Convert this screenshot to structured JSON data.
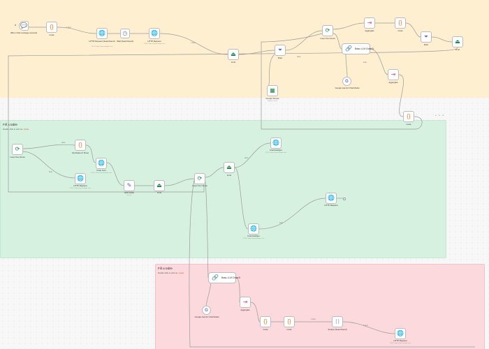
{
  "sticky_notes": {
    "green": {
      "title": "Fill a table",
      "subtitle": "Double click to edit me.",
      "guide": "Guide"
    },
    "red": {
      "title": "Fill a table",
      "subtitle": "Double click to edit me.",
      "guide": "Guide"
    }
  },
  "nodes": {
    "chat_trigger": {
      "label": "When chat message received",
      "icon": "chat-bubble-icon"
    },
    "code1": {
      "label": "Code",
      "icon": "code-braces-icon"
    },
    "http1": {
      "label": "HTTP Request (Searchsend)",
      "sub": "POST: https://api.example.com",
      "icon": "globe-icon"
    },
    "wait": {
      "label": "Wait (Searchsend)",
      "icon": "clock-icon"
    },
    "http2": {
      "label": "HTTP Request",
      "sub": "POST: https://api.example.com",
      "icon": "globe-icon"
    },
    "limit1": {
      "label": "Limit",
      "icon": "limit-icon"
    },
    "filter1": {
      "label": "Filter",
      "icon": "funnel-icon"
    },
    "loop1": {
      "label": "Loop Over Items",
      "icon": "loop-icon"
    },
    "aggregate1": {
      "label": "Aggregate",
      "icon": "aggregate-icon"
    },
    "code2": {
      "label": "Code",
      "icon": "code-braces-icon"
    },
    "filter2": {
      "label": "Filter",
      "icon": "funnel-icon"
    },
    "limit2": {
      "label": "Limit",
      "icon": "limit-icon"
    },
    "basic_llm1": {
      "label": "Basic LLM Chain",
      "icon": "link-icon",
      "badge": "⚙"
    },
    "gemini1": {
      "label": "Google Gemini Chat Model",
      "icon": "gemini-icon"
    },
    "aggregate2": {
      "label": "Aggregate",
      "icon": "aggregate-icon"
    },
    "sheets1": {
      "label": "Google Sheets",
      "sub": "append: sheet",
      "icon": "sheets-icon"
    },
    "code3": {
      "label": "Code",
      "icon": "code-braces-icon"
    },
    "loop2": {
      "label": "Loop Over Items",
      "icon": "loop-icon"
    },
    "code4": {
      "label": "Set Dates & Times",
      "icon": "code-braces-icon"
    },
    "http3": {
      "label": "Code Json",
      "sub": "POST: https://api.example.com",
      "icon": "globe-icon"
    },
    "http4": {
      "label": "HTTP Request",
      "sub": "POST: https://api.example.com",
      "icon": "globe-icon"
    },
    "edit1": {
      "label": "Edit Fields",
      "sub": "manual",
      "icon": "pencil-icon"
    },
    "limit3": {
      "label": "Limit",
      "icon": "limit-icon"
    },
    "loop3": {
      "label": "Loop Over Items",
      "icon": "loop-icon"
    },
    "limit4": {
      "label": "Limit",
      "icon": "limit-icon"
    },
    "firecrawl1": {
      "label": "FireCrawl/get",
      "sub": "POST: https://api.example.com",
      "icon": "globe-icon"
    },
    "http5": {
      "label": "HTTP Request",
      "sub": "POST: https://api.example.com",
      "icon": "globe-icon"
    },
    "firecrawl2": {
      "label": "FireCrawl/get",
      "sub": "POST: https://api.example.com",
      "icon": "globe-icon"
    },
    "basic_llm2": {
      "label": "Basic LLM Chain",
      "icon": "link-icon",
      "badge": "⚙"
    },
    "gemini2": {
      "label": "Google Gemini Chat Model",
      "icon": "gemini-icon"
    },
    "aggregate3": {
      "label": "Aggregate",
      "icon": "aggregate-icon"
    },
    "code5": {
      "label": "Code",
      "icon": "code-braces-icon"
    },
    "code6": {
      "label": "Code",
      "icon": "code-braces-icon"
    },
    "noop": {
      "label": "Scrape (Searchsend)",
      "icon": "brackets-icon"
    },
    "http6": {
      "label": "HTTP Request",
      "sub": "POST: https://api.example.com",
      "icon": "globe-icon"
    }
  },
  "edge_labels": {
    "l1": "1 item",
    "l2": "1 item",
    "l3": "done",
    "l4": "loop",
    "l5": "done",
    "l6": "loop",
    "l7": "done",
    "l8": "loop",
    "l9": "1 item",
    "l10": "1 item"
  },
  "more_dots": "• • •"
}
